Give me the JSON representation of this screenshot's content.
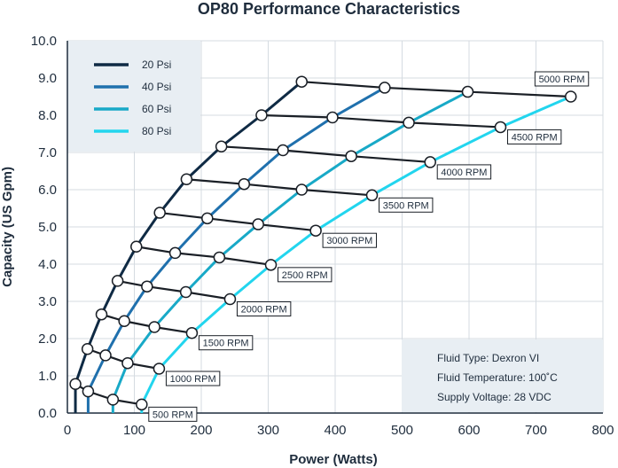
{
  "chart_data": {
    "type": "line",
    "title": "OP80 Performance Characteristics",
    "xlabel": "Power (Watts)",
    "ylabel": "Capacity (US Gpm)",
    "xlim": [
      0,
      800
    ],
    "ylim": [
      0,
      10
    ],
    "xticks": [
      "0",
      "100",
      "200",
      "300",
      "400",
      "500",
      "600",
      "700",
      "800"
    ],
    "yticks": [
      "0.0",
      "1.0",
      "2.0",
      "3.0",
      "4.0",
      "5.0",
      "6.0",
      "7.0",
      "8.0",
      "9.0",
      "10.0"
    ],
    "grid": true,
    "legend_position": "top-left",
    "series": [
      {
        "name": "20 Psi",
        "color": "#0f2a44",
        "points": [
          [
            12,
            0.78
          ],
          [
            30,
            1.72
          ],
          [
            51,
            2.65
          ],
          [
            75,
            3.55
          ],
          [
            103,
            4.47
          ],
          [
            138,
            5.38
          ],
          [
            178,
            6.28
          ],
          [
            230,
            7.16
          ],
          [
            290,
            8.0
          ],
          [
            350,
            8.9
          ]
        ]
      },
      {
        "name": "40 Psi",
        "color": "#1f70ad",
        "points": [
          [
            31,
            0.58
          ],
          [
            57,
            1.55
          ],
          [
            85,
            2.47
          ],
          [
            119,
            3.4
          ],
          [
            161,
            4.3
          ],
          [
            209,
            5.23
          ],
          [
            264,
            6.15
          ],
          [
            322,
            7.06
          ],
          [
            396,
            7.94
          ],
          [
            474,
            8.74
          ]
        ]
      },
      {
        "name": "60 Psi",
        "color": "#18a9c7",
        "points": [
          [
            68,
            0.36
          ],
          [
            90,
            1.34
          ],
          [
            130,
            2.31
          ],
          [
            177,
            3.25
          ],
          [
            227,
            4.18
          ],
          [
            285,
            5.07
          ],
          [
            350,
            6.0
          ],
          [
            424,
            6.9
          ],
          [
            510,
            7.8
          ],
          [
            598,
            8.63
          ]
        ]
      },
      {
        "name": "80 Psi",
        "color": "#22d5ee",
        "points": [
          [
            111,
            0.23
          ],
          [
            137,
            1.19
          ],
          [
            186,
            2.15
          ],
          [
            243,
            3.06
          ],
          [
            304,
            3.98
          ],
          [
            371,
            4.9
          ],
          [
            455,
            5.85
          ],
          [
            542,
            6.74
          ],
          [
            647,
            7.68
          ],
          [
            752,
            8.5
          ]
        ]
      }
    ],
    "rpm_lines": [
      {
        "label": "500 RPM",
        "points": [
          [
            12,
            0.78
          ],
          [
            31,
            0.58
          ],
          [
            68,
            0.36
          ],
          [
            111,
            0.23
          ]
        ]
      },
      {
        "label": "1000 RPM",
        "points": [
          [
            30,
            1.72
          ],
          [
            57,
            1.55
          ],
          [
            90,
            1.34
          ],
          [
            137,
            1.19
          ]
        ]
      },
      {
        "label": "1500 RPM",
        "points": [
          [
            51,
            2.65
          ],
          [
            85,
            2.47
          ],
          [
            130,
            2.31
          ],
          [
            186,
            2.15
          ]
        ]
      },
      {
        "label": "2000 RPM",
        "points": [
          [
            75,
            3.55
          ],
          [
            119,
            3.4
          ],
          [
            177,
            3.25
          ],
          [
            243,
            3.06
          ]
        ]
      },
      {
        "label": "2500 RPM",
        "points": [
          [
            103,
            4.47
          ],
          [
            161,
            4.3
          ],
          [
            227,
            4.18
          ],
          [
            304,
            3.98
          ]
        ]
      },
      {
        "label": "3000 RPM",
        "points": [
          [
            138,
            5.38
          ],
          [
            209,
            5.23
          ],
          [
            285,
            5.07
          ],
          [
            371,
            4.9
          ]
        ]
      },
      {
        "label": "3500 RPM",
        "points": [
          [
            178,
            6.28
          ],
          [
            264,
            6.15
          ],
          [
            350,
            6.0
          ],
          [
            455,
            5.85
          ]
        ]
      },
      {
        "label": "4000 RPM",
        "points": [
          [
            230,
            7.16
          ],
          [
            322,
            7.06
          ],
          [
            424,
            6.9
          ],
          [
            542,
            6.74
          ]
        ]
      },
      {
        "label": "4500 RPM",
        "points": [
          [
            290,
            8.0
          ],
          [
            396,
            7.94
          ],
          [
            510,
            7.8
          ],
          [
            647,
            7.68
          ]
        ]
      },
      {
        "label": "5000 RPM",
        "points": [
          [
            350,
            8.9
          ],
          [
            474,
            8.74
          ],
          [
            598,
            8.63
          ],
          [
            752,
            8.5
          ]
        ]
      }
    ],
    "info_box": [
      "Fluid Type: Dexron VI",
      "Fluid Temperature: 100˚C",
      "Supply Voltage: 28 VDC"
    ]
  }
}
